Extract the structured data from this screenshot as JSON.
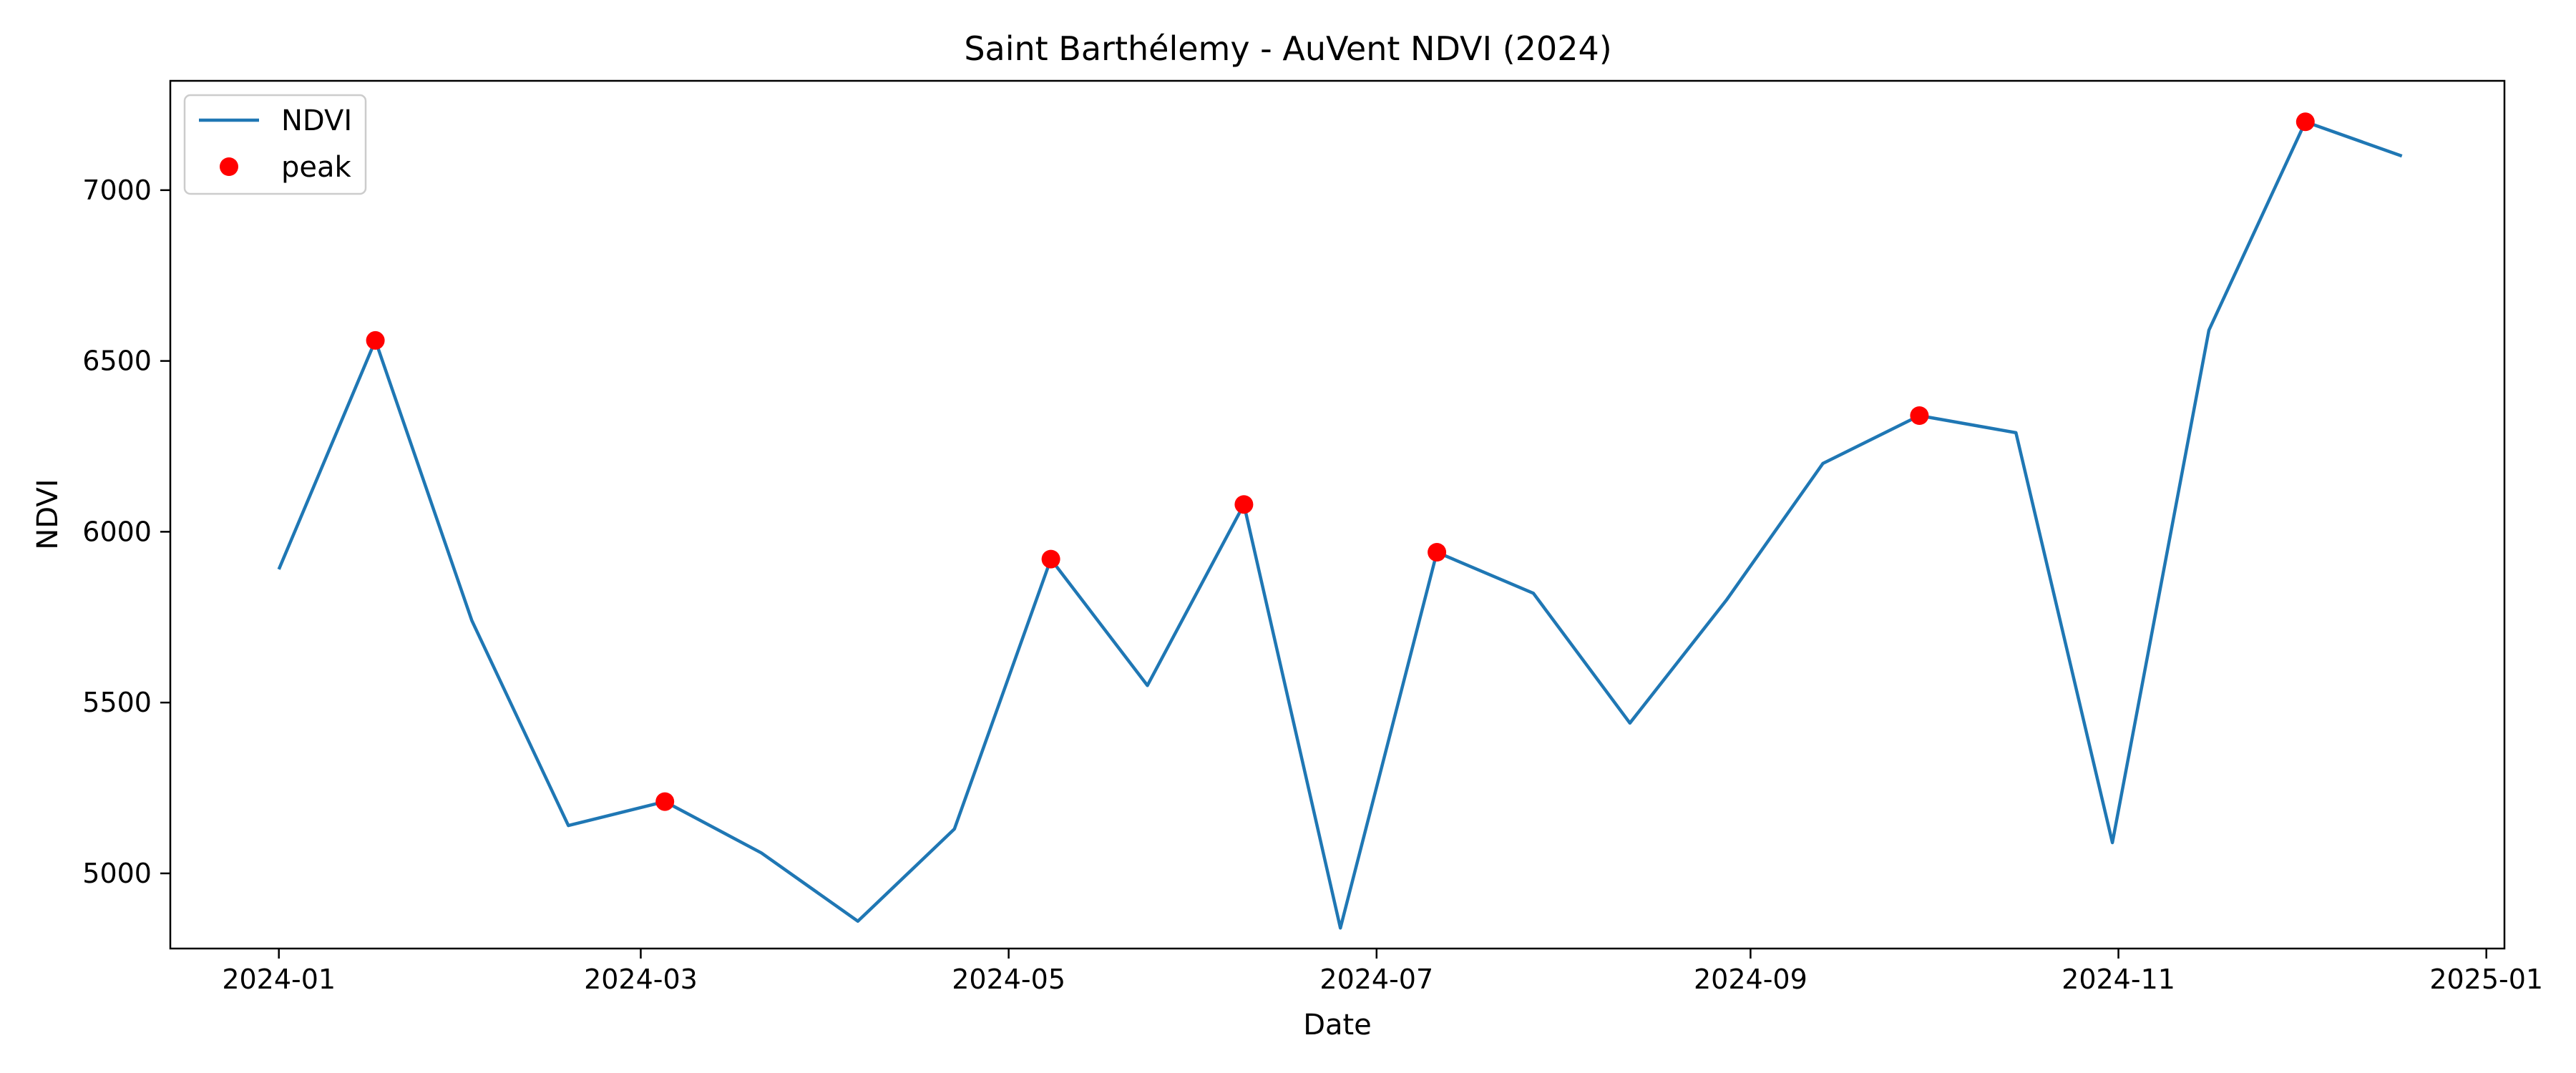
{
  "chart_data": {
    "type": "line",
    "title": "Saint Barthélemy - AuVent NDVI (2024)",
    "xlabel": "Date",
    "ylabel": "NDVI",
    "x_ticks": [
      "2024-01",
      "2024-03",
      "2024-05",
      "2024-07",
      "2024-09",
      "2024-11",
      "2025-01"
    ],
    "y_ticks": [
      5000,
      5500,
      6000,
      6500,
      7000
    ],
    "xlim": [
      "2023-12-14",
      "2025-01-04"
    ],
    "ylim": [
      4780,
      7320
    ],
    "grid": false,
    "legend_position": "top-left",
    "series": [
      {
        "name": "NDVI",
        "kind": "line",
        "color": "#1f77b4",
        "x": [
          "2024-01-01",
          "2024-01-17",
          "2024-02-02",
          "2024-02-18",
          "2024-03-05",
          "2024-03-21",
          "2024-04-06",
          "2024-04-22",
          "2024-05-08",
          "2024-05-24",
          "2024-06-09",
          "2024-06-25",
          "2024-07-11",
          "2024-07-27",
          "2024-08-12",
          "2024-08-28",
          "2024-09-13",
          "2024-09-29",
          "2024-10-15",
          "2024-10-31",
          "2024-11-16",
          "2024-12-02",
          "2024-12-18"
        ],
        "y": [
          5890,
          6560,
          5740,
          5140,
          5210,
          5060,
          4860,
          5130,
          5920,
          5550,
          6080,
          4840,
          5940,
          5820,
          5440,
          5800,
          6200,
          6340,
          6290,
          5090,
          6590,
          7200,
          7100
        ]
      },
      {
        "name": "peak",
        "kind": "scatter",
        "color": "#ff0000",
        "x": [
          "2024-01-17",
          "2024-03-05",
          "2024-05-08",
          "2024-06-09",
          "2024-07-11",
          "2024-09-29",
          "2024-12-02"
        ],
        "y": [
          6560,
          5210,
          5920,
          6080,
          5940,
          6340,
          7200
        ]
      }
    ]
  }
}
